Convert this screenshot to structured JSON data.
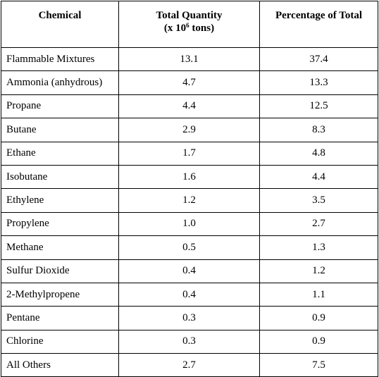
{
  "table": {
    "header": {
      "chemical": "Chemical",
      "quantity": {
        "line1": "Total Quantity",
        "line2_start": "(x 10",
        "superscript": "6",
        "line2_end": " tons)"
      },
      "percentage": "Percentage of Total"
    },
    "rows": [
      [
        "Flammable Mixtures",
        "13.1",
        "37.4"
      ],
      [
        "Ammonia (anhydrous)",
        "4.7",
        "13.3"
      ],
      [
        "Propane",
        "4.4",
        "12.5"
      ],
      [
        "Butane",
        "2.9",
        "8.3"
      ],
      [
        "Ethane",
        "1.7",
        "4.8"
      ],
      [
        "Isobutane",
        "1.6",
        "4.4"
      ],
      [
        "Ethylene",
        "1.2",
        "3.5"
      ],
      [
        "Propylene",
        "1.0",
        "2.7"
      ],
      [
        "Methane",
        "0.5",
        "1.3"
      ],
      [
        "Sulfur Dioxide",
        "0.4",
        "1.2"
      ],
      [
        "2-Methylpropene",
        "0.4",
        "1.1"
      ],
      [
        "Pentane",
        "0.3",
        "0.9"
      ],
      [
        "Chlorine",
        "0.3",
        "0.9"
      ],
      [
        "All Others",
        "2.7",
        "7.5"
      ]
    ]
  }
}
